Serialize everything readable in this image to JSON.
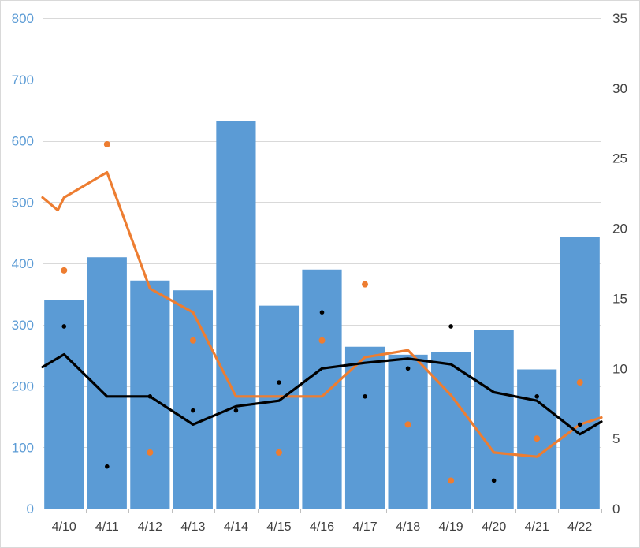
{
  "chart_data": {
    "type": "bar",
    "categories": [
      "4/10",
      "4/11",
      "4/12",
      "4/13",
      "4/14",
      "4/15",
      "4/16",
      "4/17",
      "4/18",
      "4/19",
      "4/20",
      "4/21",
      "4/22"
    ],
    "left_axis": {
      "ylim": [
        0,
        800
      ],
      "ticks": [
        0,
        100,
        200,
        300,
        400,
        500,
        600,
        700,
        800
      ]
    },
    "right_axis": {
      "ylim": [
        0,
        35
      ],
      "ticks": [
        0,
        5,
        10,
        15,
        20,
        25,
        30,
        35
      ]
    },
    "grid": true,
    "series": [
      {
        "kind": "bar",
        "axis": "left",
        "color": "#5b9bd5",
        "values": [
          340,
          410,
          372,
          356,
          632,
          331,
          390,
          264,
          251,
          255,
          291,
          227,
          443
        ]
      },
      {
        "kind": "line",
        "axis": "right",
        "color": "#ed7d31",
        "values": [
          22.2,
          24.0,
          15.7,
          14.0,
          8.0,
          8.0,
          8.0,
          10.8,
          11.3,
          8.1,
          4.0,
          3.7,
          6.0
        ],
        "start_value": 22.2,
        "start_after": 21.3,
        "end_value": 6.5
      },
      {
        "kind": "scatter",
        "axis": "right",
        "color": "#ed7d31",
        "values": [
          17,
          26,
          4,
          12,
          null,
          4,
          12,
          16,
          6,
          2,
          null,
          5,
          9
        ]
      },
      {
        "kind": "line",
        "axis": "right",
        "color": "#000000",
        "values": [
          11.0,
          8.0,
          8.0,
          6.0,
          7.3,
          7.7,
          10.0,
          10.4,
          10.7,
          10.3,
          8.3,
          7.7,
          5.3
        ],
        "start_value": 10.1,
        "end_value": 6.2
      },
      {
        "kind": "scatter",
        "axis": "right",
        "color": "#000000",
        "values": [
          13,
          3,
          8,
          7,
          7,
          9,
          14,
          8,
          10,
          13,
          2,
          8,
          6
        ]
      }
    ]
  }
}
